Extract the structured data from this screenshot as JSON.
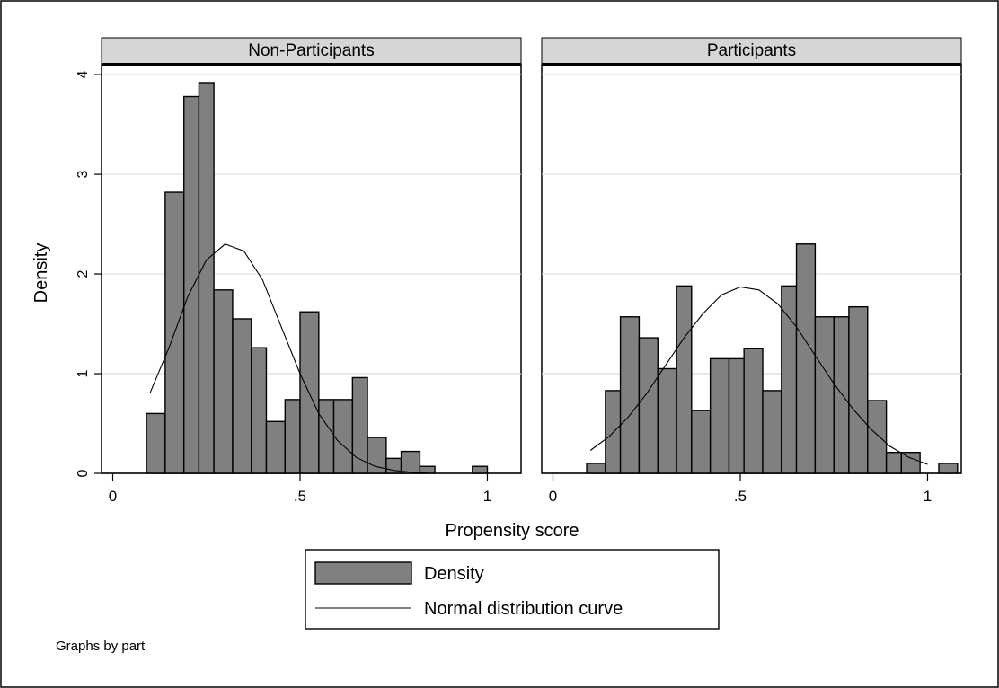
{
  "chart_data": {
    "type": "bar",
    "subtype": "histogram-with-normal-curve",
    "ylabel": "Density",
    "xlabel": "Propensity score",
    "ylim": [
      0,
      4.1
    ],
    "xlim": [
      -0.03,
      1.09
    ],
    "yticks": [
      "0",
      "1",
      "2",
      "3",
      "4"
    ],
    "ytick_values": [
      0,
      1,
      2,
      3,
      4
    ],
    "xticks": [
      "0",
      ".5",
      "1"
    ],
    "xtick_values": [
      0,
      0.5,
      1
    ],
    "grid": true,
    "bin_width": 0.05,
    "panels": [
      {
        "name": "Non-Participants",
        "bin_starts": [
          -0.03,
          0.09,
          0.14,
          0.19,
          0.23,
          0.27,
          0.32,
          0.37,
          0.41,
          0.46,
          0.5,
          0.55,
          0.59,
          0.64,
          0.68,
          0.73,
          0.77,
          0.82,
          0.86,
          0.91,
          0.96,
          1.0
        ],
        "bin_ends": [
          0.09,
          0.14,
          0.19,
          0.23,
          0.27,
          0.32,
          0.37,
          0.41,
          0.46,
          0.5,
          0.55,
          0.59,
          0.64,
          0.68,
          0.73,
          0.77,
          0.82,
          0.86,
          0.91,
          0.96,
          1.0,
          1.09
        ],
        "values": [
          0.0,
          0.6,
          2.82,
          3.78,
          3.92,
          1.84,
          1.55,
          1.26,
          0.52,
          0.74,
          1.62,
          0.74,
          0.74,
          0.96,
          0.36,
          0.15,
          0.22,
          0.07,
          0.0,
          0.0,
          0.07,
          0.0
        ],
        "normal_curve": {
          "name": "Normal distribution curve",
          "x": [
            0.1,
            0.15,
            0.2,
            0.25,
            0.3,
            0.35,
            0.4,
            0.45,
            0.5,
            0.55,
            0.6,
            0.65,
            0.7,
            0.75,
            0.8,
            0.85,
            0.9,
            0.95,
            1.0
          ],
          "y": [
            0.81,
            1.26,
            1.77,
            2.14,
            2.3,
            2.23,
            1.94,
            1.47,
            1.0,
            0.6,
            0.33,
            0.16,
            0.07,
            0.03,
            0.01,
            0.0,
            0.0,
            0.0,
            0.0
          ]
        }
      },
      {
        "name": "Participants",
        "bin_starts": [
          -0.03,
          0.09,
          0.14,
          0.18,
          0.23,
          0.28,
          0.33,
          0.37,
          0.42,
          0.47,
          0.51,
          0.56,
          0.61,
          0.65,
          0.7,
          0.75,
          0.79,
          0.84,
          0.89,
          0.93,
          0.98,
          1.03
        ],
        "bin_ends": [
          0.09,
          0.14,
          0.18,
          0.23,
          0.28,
          0.33,
          0.37,
          0.42,
          0.47,
          0.51,
          0.56,
          0.61,
          0.65,
          0.7,
          0.75,
          0.79,
          0.84,
          0.89,
          0.93,
          0.98,
          1.03,
          1.08
        ],
        "values": [
          0.0,
          0.1,
          0.83,
          1.57,
          1.36,
          1.05,
          1.88,
          0.63,
          1.15,
          1.15,
          1.25,
          0.83,
          1.88,
          2.3,
          1.57,
          1.57,
          1.67,
          0.73,
          0.21,
          0.21,
          0.0,
          0.1
        ],
        "normal_curve": {
          "name": "Normal distribution curve",
          "x": [
            0.1,
            0.15,
            0.2,
            0.25,
            0.3,
            0.35,
            0.4,
            0.45,
            0.5,
            0.55,
            0.6,
            0.65,
            0.7,
            0.75,
            0.8,
            0.85,
            0.9,
            0.95,
            1.0
          ],
          "y": [
            0.23,
            0.37,
            0.56,
            0.8,
            1.08,
            1.36,
            1.6,
            1.79,
            1.87,
            1.84,
            1.7,
            1.47,
            1.18,
            0.9,
            0.65,
            0.44,
            0.27,
            0.16,
            0.09
          ]
        }
      }
    ],
    "legend": {
      "placement": "bottom-center",
      "entries": [
        {
          "label": "Density",
          "kind": "bar"
        },
        {
          "label": "Normal distribution curve",
          "kind": "line"
        }
      ]
    },
    "note": "Graphs by part",
    "colors": {
      "bar_fill": "#808080",
      "bar_edge": "#000000",
      "curve": "#000000",
      "strip_fill": "#d6d6d6",
      "grid": "#dcdcdc",
      "background": "#ffffff"
    }
  }
}
